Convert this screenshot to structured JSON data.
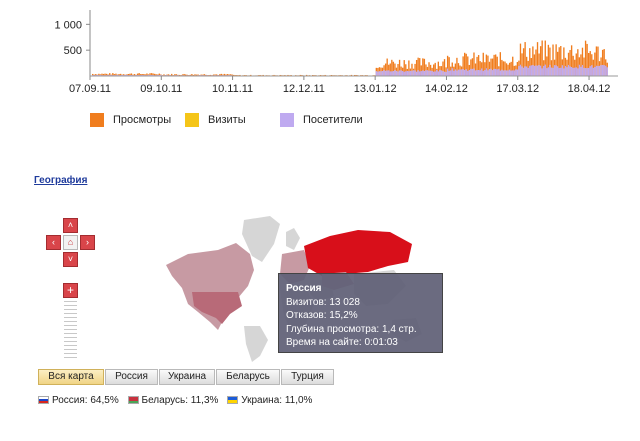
{
  "chart_data": {
    "type": "bar",
    "series": [
      {
        "name": "Просмотры",
        "color": "#f07d1e"
      },
      {
        "name": "Визиты",
        "color": "#f5c518"
      },
      {
        "name": "Посетители",
        "color": "#bfaaf0"
      }
    ],
    "x_tick_labels": [
      "07.09.11",
      "09.10.11",
      "10.11.11",
      "12.12.11",
      "13.01.12",
      "14.02.12",
      "17.03.12",
      "18.04.12"
    ],
    "y_tick_labels": [
      "1 000",
      "500"
    ],
    "ylim": [
      0,
      1200
    ],
    "x_start": "2011-09-07",
    "x_end": "2012-05-01",
    "period_values": [
      {
        "start": "2011-09-07",
        "end": "2011-10-09",
        "views": 40,
        "visitors": 18
      },
      {
        "start": "2011-10-09",
        "end": "2011-11-10",
        "views": 30,
        "visitors": 14
      },
      {
        "start": "2011-11-10",
        "end": "2011-12-12",
        "views": 15,
        "visitors": 8
      },
      {
        "start": "2011-12-12",
        "end": "2012-01-13",
        "views": 15,
        "visitors": 8
      },
      {
        "start": "2012-01-13",
        "end": "2012-02-14",
        "views": 250,
        "visitors": 100
      },
      {
        "start": "2012-02-14",
        "end": "2012-03-17",
        "views": 320,
        "visitors": 125
      },
      {
        "start": "2012-03-17",
        "end": "2012-04-18",
        "views": 480,
        "visitors": 185
      },
      {
        "start": "2012-04-18",
        "end": "2012-05-01",
        "views": 450,
        "visitors": 180
      }
    ]
  },
  "geography": {
    "link_label": "География",
    "tooltip": {
      "country": "Россия",
      "visits": "Визитов: 13 028",
      "bounces": "Отказов: 15,2%",
      "depth": "Глубина просмотра: 1,4 стр.",
      "time": "Время на сайте: 0:01:03"
    },
    "tabs": [
      "Вся карта",
      "Россия",
      "Украина",
      "Беларусь",
      "Турция"
    ],
    "active_tab": 0,
    "country_stats": [
      {
        "flag": "ru",
        "text": "Россия: 64,5%"
      },
      {
        "flag": "by",
        "text": "Беларусь: 11,3%"
      },
      {
        "flag": "ua",
        "text": "Украина: 11,0%"
      }
    ],
    "map_colors": {
      "highlight": "#d80f1a",
      "secondary": "#b86a78",
      "tertiary": "#c79aa3",
      "neutral": "#d6d6d6"
    }
  }
}
